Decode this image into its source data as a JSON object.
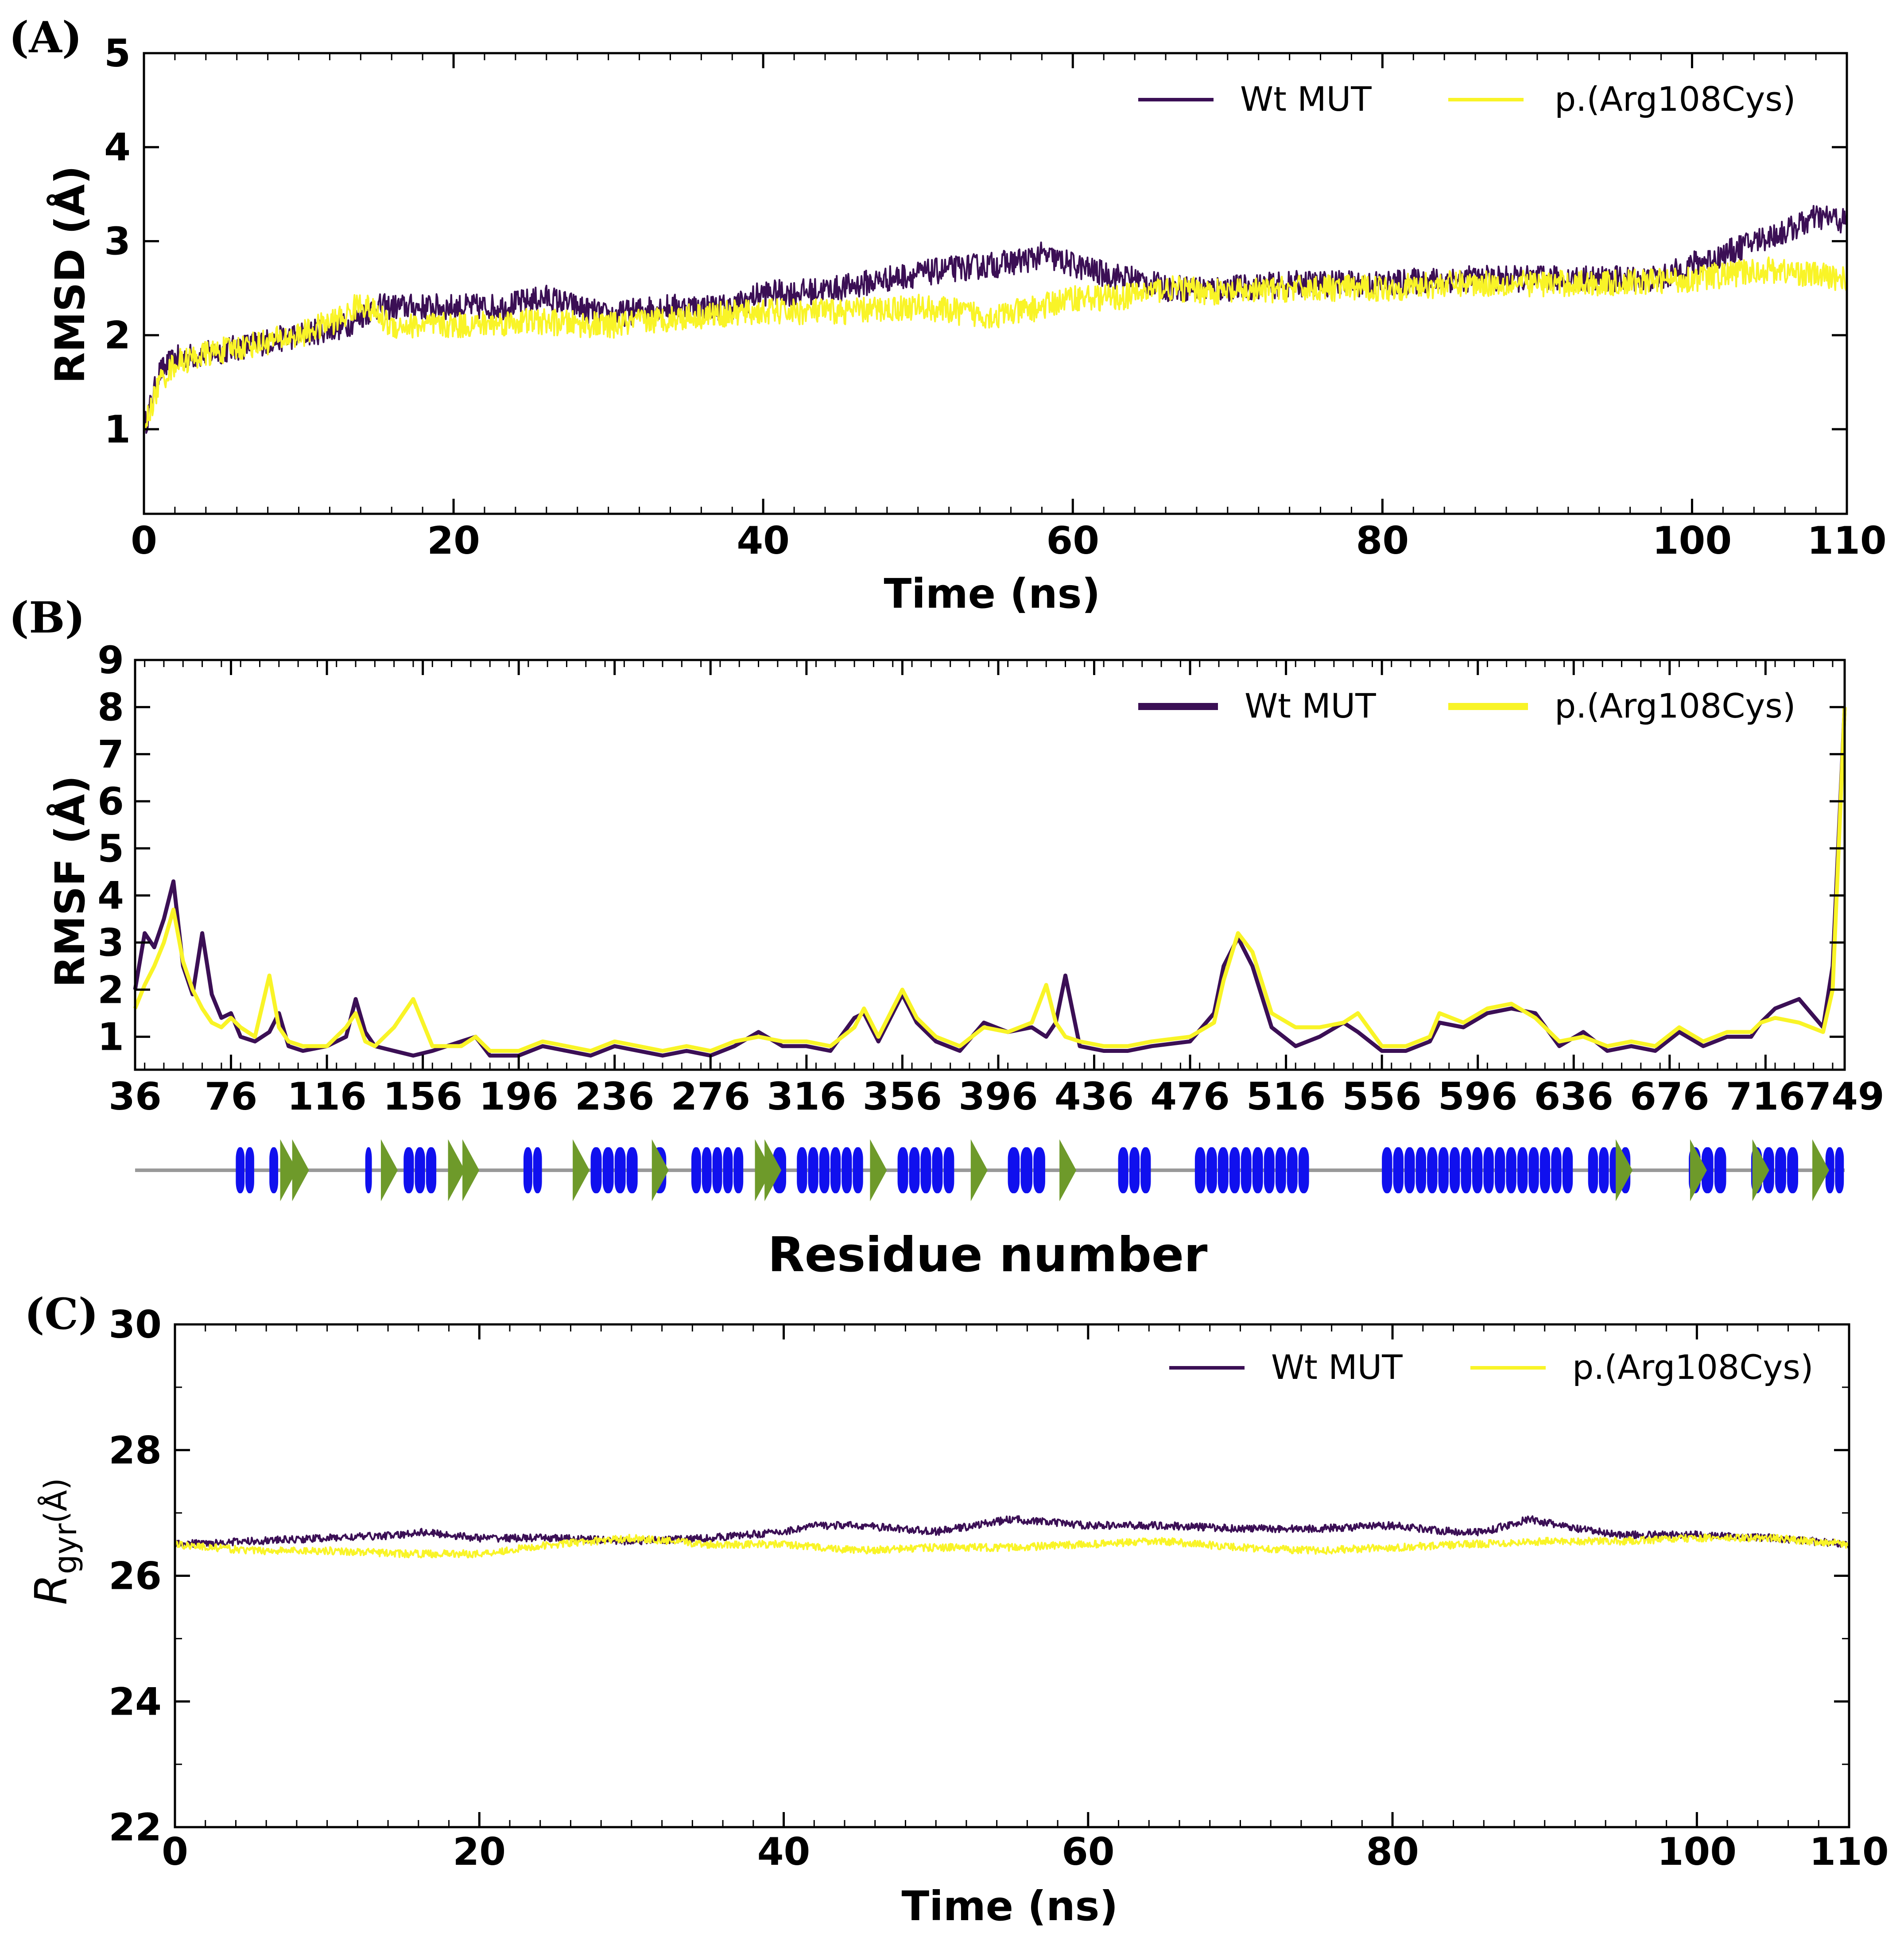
{
  "colors": {
    "wt": "#3b0f55",
    "mut": "#f9f427",
    "helix": "#1010ee",
    "strand": "#6e9a2a",
    "backbone": "#999999"
  },
  "chart_data": [
    {
      "panel_label": "(A)",
      "type": "line",
      "xlabel": "Time (ns)",
      "ylabel": "RMSD (Å)",
      "xlim": [
        0,
        110
      ],
      "ylim": [
        0.1,
        5
      ],
      "xticks": [
        0,
        20,
        40,
        60,
        80,
        100,
        110
      ],
      "yticks": [
        1,
        2,
        3,
        4,
        5
      ],
      "legend_position": "top-right",
      "series": [
        {
          "name": "Wt MUT",
          "x": [
            0,
            1,
            2,
            4,
            7,
            10,
            13,
            15,
            18,
            20,
            23,
            26,
            28,
            30,
            33,
            36,
            38,
            40,
            42,
            45,
            48,
            50,
            52,
            55,
            57,
            58,
            60,
            62,
            64,
            66,
            70,
            75,
            80,
            85,
            90,
            95,
            98,
            100,
            102,
            104,
            106,
            108,
            109,
            110
          ],
          "y": [
            1.0,
            1.6,
            1.75,
            1.8,
            1.9,
            2.0,
            2.1,
            2.3,
            2.3,
            2.3,
            2.3,
            2.4,
            2.3,
            2.2,
            2.3,
            2.3,
            2.3,
            2.45,
            2.45,
            2.5,
            2.6,
            2.65,
            2.7,
            2.75,
            2.8,
            2.85,
            2.75,
            2.65,
            2.6,
            2.5,
            2.5,
            2.55,
            2.55,
            2.6,
            2.6,
            2.6,
            2.6,
            2.75,
            2.85,
            3.0,
            3.1,
            3.25,
            3.25,
            3.2
          ]
        },
        {
          "name": "p.(Arg108Cys)",
          "x": [
            0,
            1,
            2,
            4,
            7,
            10,
            13,
            14,
            16,
            20,
            25,
            30,
            35,
            40,
            45,
            50,
            55,
            58,
            60,
            63,
            66,
            70,
            75,
            80,
            85,
            90,
            95,
            100,
            105,
            110
          ],
          "y": [
            1.0,
            1.5,
            1.7,
            1.8,
            1.9,
            2.0,
            2.2,
            2.35,
            2.1,
            2.1,
            2.15,
            2.1,
            2.2,
            2.25,
            2.25,
            2.3,
            2.2,
            2.3,
            2.4,
            2.4,
            2.5,
            2.45,
            2.5,
            2.5,
            2.55,
            2.55,
            2.55,
            2.6,
            2.7,
            2.6
          ]
        }
      ]
    },
    {
      "panel_label": "(B)",
      "type": "line",
      "xlabel": "Residue number",
      "ylabel": "RMSF (Å)",
      "xlim": [
        36,
        749
      ],
      "ylim": [
        0.3,
        9
      ],
      "xticks": [
        36,
        76,
        116,
        156,
        196,
        236,
        276,
        316,
        356,
        396,
        436,
        476,
        516,
        556,
        596,
        636,
        676,
        716,
        749
      ],
      "yticks": [
        1,
        2,
        3,
        4,
        5,
        6,
        7,
        8,
        9
      ],
      "legend_position": "top-right",
      "series": [
        {
          "name": "Wt MUT",
          "x": [
            36,
            40,
            44,
            48,
            52,
            56,
            60,
            64,
            68,
            72,
            76,
            80,
            86,
            92,
            96,
            100,
            106,
            116,
            124,
            128,
            132,
            136,
            144,
            152,
            160,
            172,
            178,
            184,
            196,
            206,
            216,
            226,
            236,
            246,
            256,
            266,
            276,
            286,
            296,
            306,
            316,
            326,
            336,
            340,
            346,
            352,
            356,
            362,
            370,
            380,
            390,
            400,
            410,
            416,
            420,
            424,
            430,
            440,
            450,
            460,
            476,
            486,
            490,
            496,
            502,
            510,
            520,
            530,
            540,
            546,
            556,
            566,
            576,
            580,
            590,
            600,
            610,
            620,
            630,
            640,
            650,
            660,
            670,
            680,
            690,
            700,
            710,
            714,
            720,
            730,
            740,
            744,
            749
          ],
          "y": [
            2.0,
            3.2,
            2.9,
            3.5,
            4.3,
            2.5,
            1.9,
            3.2,
            1.9,
            1.4,
            1.5,
            1.0,
            0.9,
            1.1,
            1.5,
            0.8,
            0.7,
            0.8,
            1.0,
            1.8,
            1.1,
            0.8,
            0.7,
            0.6,
            0.7,
            0.9,
            1.0,
            0.6,
            0.6,
            0.8,
            0.7,
            0.6,
            0.8,
            0.7,
            0.6,
            0.7,
            0.6,
            0.8,
            1.1,
            0.8,
            0.8,
            0.7,
            1.4,
            1.5,
            0.9,
            1.5,
            1.9,
            1.3,
            0.9,
            0.7,
            1.3,
            1.1,
            1.2,
            1.0,
            1.3,
            2.3,
            0.8,
            0.7,
            0.7,
            0.8,
            0.9,
            1.5,
            2.5,
            3.1,
            2.5,
            1.2,
            0.8,
            1.0,
            1.3,
            1.1,
            0.7,
            0.7,
            0.9,
            1.3,
            1.2,
            1.5,
            1.6,
            1.5,
            0.8,
            1.1,
            0.7,
            0.8,
            0.7,
            1.1,
            0.8,
            1.0,
            1.0,
            1.3,
            1.6,
            1.8,
            1.2,
            2.5,
            8.0
          ]
        },
        {
          "name": "p.(Arg108Cys)",
          "x": [
            36,
            40,
            44,
            48,
            52,
            56,
            60,
            64,
            68,
            72,
            76,
            80,
            86,
            92,
            96,
            100,
            106,
            116,
            124,
            128,
            132,
            136,
            144,
            152,
            160,
            172,
            178,
            184,
            196,
            206,
            216,
            226,
            236,
            246,
            256,
            266,
            276,
            286,
            296,
            306,
            316,
            326,
            336,
            340,
            346,
            352,
            356,
            362,
            370,
            380,
            390,
            400,
            410,
            416,
            420,
            424,
            430,
            440,
            450,
            460,
            476,
            486,
            490,
            496,
            502,
            510,
            520,
            530,
            540,
            546,
            556,
            566,
            576,
            580,
            590,
            600,
            610,
            620,
            630,
            640,
            650,
            660,
            670,
            680,
            690,
            700,
            710,
            714,
            720,
            730,
            740,
            744,
            749
          ],
          "y": [
            1.6,
            2.1,
            2.5,
            3.0,
            3.7,
            2.6,
            2.0,
            1.6,
            1.3,
            1.2,
            1.4,
            1.2,
            1.0,
            2.3,
            1.2,
            0.9,
            0.8,
            0.8,
            1.2,
            1.5,
            0.9,
            0.8,
            1.2,
            1.8,
            0.8,
            0.8,
            1.0,
            0.7,
            0.7,
            0.9,
            0.8,
            0.7,
            0.9,
            0.8,
            0.7,
            0.8,
            0.7,
            0.9,
            1.0,
            0.9,
            0.9,
            0.8,
            1.2,
            1.6,
            1.0,
            1.6,
            2.0,
            1.4,
            1.0,
            0.8,
            1.2,
            1.1,
            1.3,
            2.1,
            1.3,
            1.0,
            0.9,
            0.8,
            0.8,
            0.9,
            1.0,
            1.3,
            2.2,
            3.2,
            2.8,
            1.5,
            1.2,
            1.2,
            1.3,
            1.5,
            0.8,
            0.8,
            1.0,
            1.5,
            1.3,
            1.6,
            1.7,
            1.4,
            0.9,
            1.0,
            0.8,
            0.9,
            0.8,
            1.2,
            0.9,
            1.1,
            1.1,
            1.3,
            1.4,
            1.3,
            1.1,
            2.0,
            8.0
          ]
        }
      ],
      "secondary_structure": {
        "helices": [
          [
            78,
            86
          ],
          [
            92,
            96
          ],
          [
            132,
            135
          ],
          [
            148,
            162
          ],
          [
            198,
            206
          ],
          [
            226,
            246
          ],
          [
            252,
            258
          ],
          [
            268,
            290
          ],
          [
            302,
            308
          ],
          [
            312,
            340
          ],
          [
            354,
            378
          ],
          [
            400,
            416
          ],
          [
            446,
            460
          ],
          [
            478,
            526
          ],
          [
            556,
            636
          ],
          [
            642,
            660
          ],
          [
            684,
            700
          ],
          [
            710,
            730
          ],
          [
            741,
            749
          ]
        ],
        "strands": [
          98,
          103,
          140,
          168,
          174,
          220,
          253,
          296,
          300,
          344,
          386,
          423,
          655,
          686,
          712,
          737
        ]
      }
    },
    {
      "panel_label": "(C)",
      "type": "line",
      "xlabel": "Time (ns)",
      "ylabel_main": "R",
      "ylabel_sub": "gyr",
      "ylabel_unit": "(Å)",
      "xlim": [
        0,
        110
      ],
      "ylim": [
        22,
        30
      ],
      "xticks": [
        0,
        20,
        40,
        60,
        80,
        100,
        110
      ],
      "yticks": [
        22,
        24,
        26,
        28,
        30
      ],
      "legend_position": "top-right",
      "series": [
        {
          "name": "Wt MUT",
          "x": [
            0,
            5,
            10,
            15,
            16,
            20,
            25,
            30,
            35,
            40,
            42,
            45,
            50,
            55,
            60,
            65,
            70,
            75,
            80,
            84,
            86,
            89,
            92,
            95,
            100,
            105,
            110
          ],
          "y": [
            26.5,
            26.55,
            26.6,
            26.65,
            26.7,
            26.6,
            26.6,
            26.55,
            26.6,
            26.7,
            26.8,
            26.8,
            26.7,
            26.9,
            26.8,
            26.8,
            26.75,
            26.75,
            26.8,
            26.7,
            26.7,
            26.9,
            26.75,
            26.65,
            26.65,
            26.6,
            26.5
          ]
        },
        {
          "name": "p.(Arg108Cys)",
          "x": [
            0,
            5,
            10,
            15,
            20,
            25,
            30,
            35,
            40,
            45,
            50,
            55,
            60,
            65,
            70,
            75,
            80,
            85,
            90,
            95,
            100,
            105,
            110
          ],
          "y": [
            26.5,
            26.4,
            26.4,
            26.35,
            26.35,
            26.5,
            26.6,
            26.5,
            26.5,
            26.4,
            26.45,
            26.45,
            26.5,
            26.55,
            26.45,
            26.4,
            26.45,
            26.5,
            26.55,
            26.55,
            26.6,
            26.6,
            26.5
          ]
        }
      ]
    }
  ]
}
